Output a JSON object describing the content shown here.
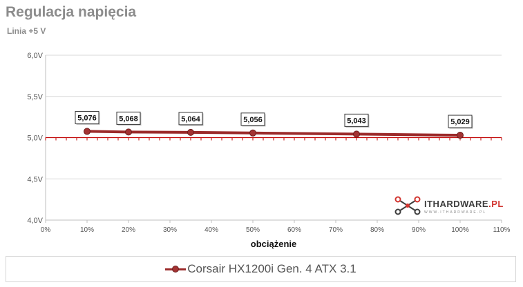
{
  "title": "Regulacja napięcia",
  "subtitle": "Linia +5 V",
  "logo": {
    "main": "ITHARDWARE",
    "suffix": ".PL",
    "tag": "WWW.ITHARDWARE.PL"
  },
  "chart_data": {
    "type": "line",
    "xlabel": "obciążenie",
    "ylabel": "",
    "xlim": [
      0,
      110
    ],
    "ylim": [
      4.0,
      6.0
    ],
    "x_ticks": [
      "0%",
      "10%",
      "20%",
      "30%",
      "40%",
      "50%",
      "60%",
      "70%",
      "80%",
      "90%",
      "100%",
      "110%"
    ],
    "y_ticks": [
      "4,0V",
      "4,5V",
      "5,0V",
      "5,5V",
      "6,0V"
    ],
    "reference_line": 5.0,
    "grid": "horizontal",
    "series": [
      {
        "name": "Corsair HX1200i Gen. 4 ATX 3.1",
        "color": "#9b2a2a",
        "x": [
          10,
          20,
          35,
          50,
          75,
          100
        ],
        "y": [
          5.076,
          5.068,
          5.064,
          5.056,
          5.043,
          5.029
        ],
        "labels": [
          "5,076",
          "5,068",
          "5,064",
          "5,056",
          "5,043",
          "5,029"
        ]
      }
    ],
    "legend": "bottom"
  }
}
